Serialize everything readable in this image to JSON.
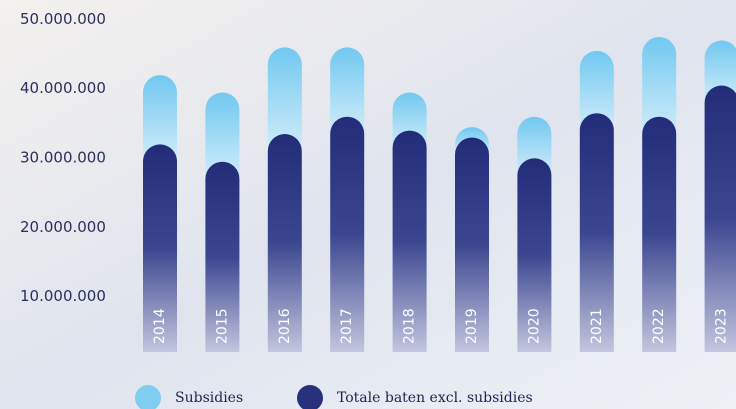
{
  "chart_data": {
    "type": "stacked-bar",
    "categories": [
      "2014",
      "2015",
      "2016",
      "2017",
      "2018",
      "2019",
      "2020",
      "2021",
      "2022",
      "2023"
    ],
    "series": [
      {
        "name": "Totale baten excl. subsidies",
        "color": "#27307a",
        "values": [
          29500000,
          27000000,
          31000000,
          33500000,
          31500000,
          30500000,
          27500000,
          34000000,
          33500000,
          38000000
        ]
      },
      {
        "name": "Subsidies",
        "color": "#7fcdef",
        "values": [
          10000000,
          10000000,
          12500000,
          10000000,
          5500000,
          1500000,
          6000000,
          9000000,
          11500000,
          6500000
        ]
      }
    ],
    "ylim": [
      2000000,
      52000000
    ],
    "yticks": [
      {
        "value": 10000000,
        "label": "10.000.000"
      },
      {
        "value": 20000000,
        "label": "20.000.000"
      },
      {
        "value": 30000000,
        "label": "30.000.000"
      },
      {
        "value": 40000000,
        "label": "40.000.000"
      },
      {
        "value": 50000000,
        "label": "50.000.000"
      }
    ]
  }
}
